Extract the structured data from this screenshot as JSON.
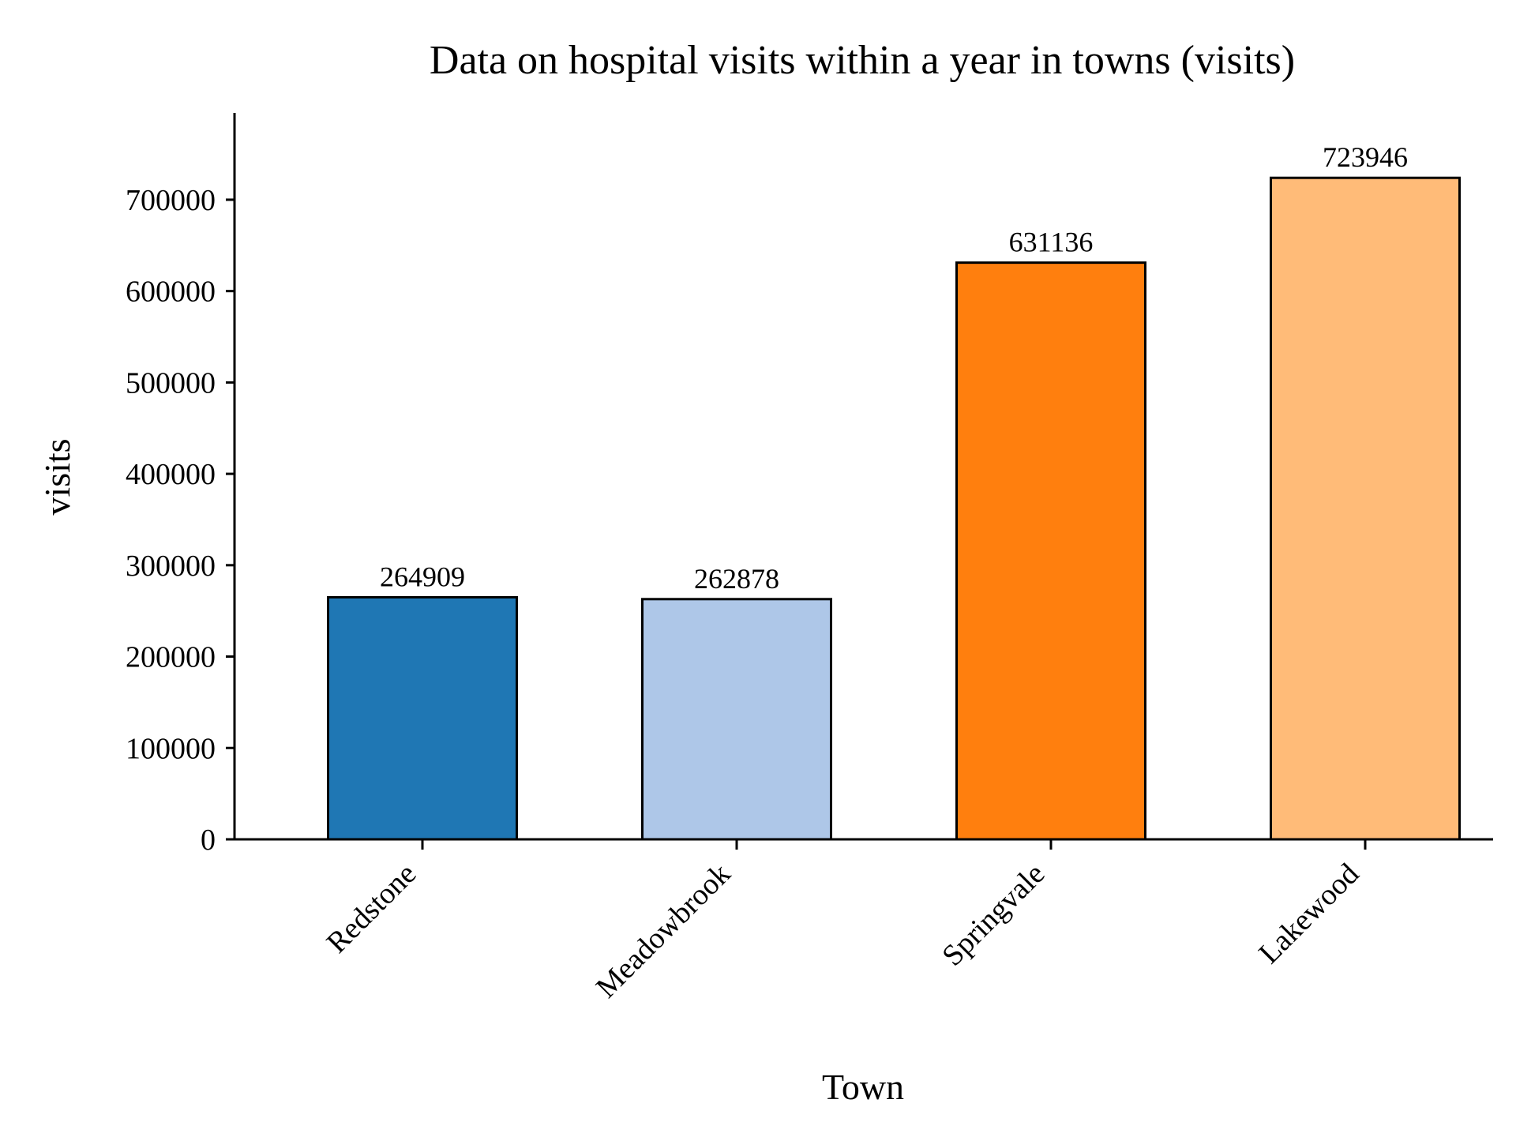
{
  "chart_data": {
    "type": "bar",
    "title": "Data on hospital visits within a year in towns (visits)",
    "xlabel": "Town",
    "ylabel": "visits",
    "categories": [
      "Redstone",
      "Meadowbrook",
      "Springvale",
      "Lakewood"
    ],
    "values": [
      264909,
      262878,
      631136,
      723946
    ],
    "colors": [
      "#1f77b4",
      "#aec7e8",
      "#ff7f0e",
      "#ffbb78"
    ],
    "ylim": [
      0,
      795000
    ],
    "yticks": [
      0,
      100000,
      200000,
      300000,
      400000,
      500000,
      600000,
      700000
    ],
    "grid": false,
    "legend": "none"
  }
}
